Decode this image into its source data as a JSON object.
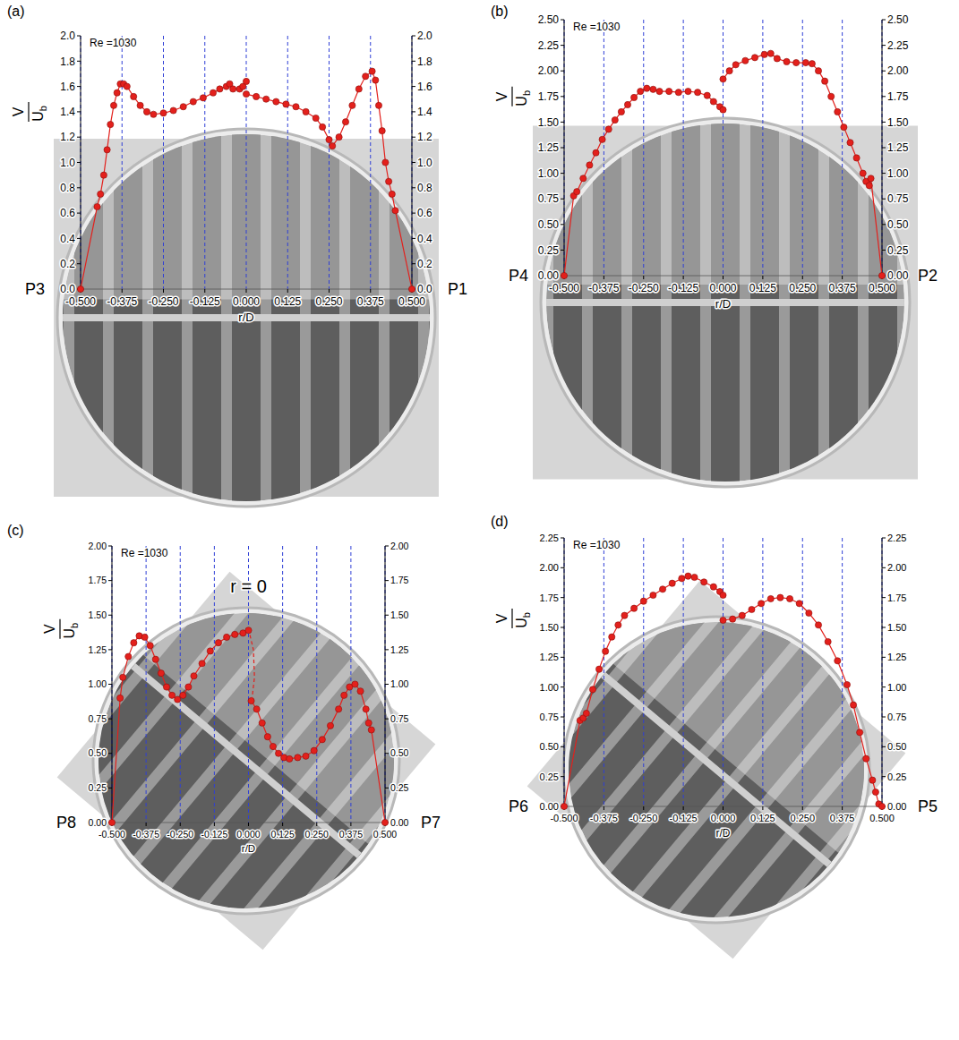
{
  "chart_data": [
    {
      "type": "line",
      "panel_label": "(a)",
      "annotations": [
        "Re =1030"
      ],
      "left_label": "P3",
      "right_label": "P1",
      "x_label": "r/D",
      "y_label": {
        "numerator": "V",
        "denominator": "U",
        "denominator_subscript": "b"
      },
      "xlim": [
        -0.5,
        0.5
      ],
      "xticks": [
        {
          "value": -0.5,
          "label": "-0.500"
        },
        -0.375,
        {
          "value": -0.25,
          "label": "-0.250"
        },
        -0.125,
        {
          "value": 0,
          "label": "0.000"
        },
        0.125,
        {
          "value": 0.25,
          "label": "0.250"
        },
        0.375,
        {
          "value": 0.5,
          "label": "0.500"
        }
      ],
      "ylim": [
        0,
        2
      ],
      "yticks": [
        {
          "value": 0,
          "label": "0.0"
        },
        0.2,
        0.4,
        0.6,
        0.8,
        {
          "value": 1,
          "label": "1.0"
        },
        1.2,
        1.4,
        1.6,
        1.8,
        {
          "value": 2,
          "label": "2.0"
        }
      ],
      "y2lim": [
        0,
        2
      ],
      "y2ticks": [
        {
          "value": 0,
          "label": "0.0"
        },
        0.2,
        0.4,
        0.6,
        0.8,
        {
          "value": 1,
          "label": "1.0"
        },
        1.2,
        1.4,
        1.6,
        1.8,
        {
          "value": 2,
          "label": "2.0"
        }
      ],
      "grid": true,
      "series": [
        {
          "color": "#e3201c",
          "marker": "circle",
          "line_style": "solid",
          "x": [
            -0.5,
            -0.45,
            -0.44,
            -0.43,
            -0.42,
            -0.41,
            -0.4,
            -0.39,
            -0.38,
            -0.37,
            -0.36,
            -0.34,
            -0.32,
            -0.3,
            -0.28,
            -0.25,
            -0.22,
            -0.19,
            -0.16,
            -0.13,
            -0.1,
            -0.08,
            -0.06,
            -0.05,
            -0.04,
            -0.02,
            -0.01,
            0
          ],
          "values": [
            0,
            0.65,
            0.75,
            0.9,
            1.1,
            1.3,
            1.45,
            1.55,
            1.62,
            1.62,
            1.6,
            1.52,
            1.45,
            1.4,
            1.38,
            1.39,
            1.41,
            1.44,
            1.48,
            1.51,
            1.55,
            1.58,
            1.6,
            1.62,
            1.58,
            1.58,
            1.6,
            1.64
          ]
        },
        {
          "color": "#e3201c",
          "marker": "circle",
          "line_style": "solid",
          "x": [
            0,
            0.03,
            0.06,
            0.09,
            0.12,
            0.15,
            0.18,
            0.21,
            0.23,
            0.25,
            0.26,
            0.28,
            0.3,
            0.32,
            0.34,
            0.36,
            0.38,
            0.39,
            0.4,
            0.41,
            0.42,
            0.43,
            0.44,
            0.45,
            0.5
          ],
          "values": [
            1.54,
            1.52,
            1.5,
            1.48,
            1.46,
            1.44,
            1.4,
            1.35,
            1.28,
            1.18,
            1.13,
            1.2,
            1.32,
            1.45,
            1.58,
            1.68,
            1.72,
            1.65,
            1.45,
            1.25,
            1.0,
            0.85,
            0.75,
            0.62,
            0
          ]
        }
      ]
    },
    {
      "type": "line",
      "panel_label": "(b)",
      "annotations": [
        "Re =1030"
      ],
      "left_label": "P4",
      "right_label": "P2",
      "x_label": "r/D",
      "y_label": {
        "numerator": "V",
        "denominator": "U",
        "denominator_subscript": "b"
      },
      "xlim": [
        -0.5,
        0.5
      ],
      "xticks": [
        {
          "value": -0.5,
          "label": "-0.500"
        },
        -0.375,
        {
          "value": -0.25,
          "label": "-0.250"
        },
        -0.125,
        {
          "value": 0,
          "label": "0.000"
        },
        0.125,
        {
          "value": 0.25,
          "label": "0.250"
        },
        0.375,
        {
          "value": 0.5,
          "label": "0.500"
        }
      ],
      "ylim": [
        0,
        2.5
      ],
      "yticks": [
        {
          "value": 0,
          "label": "0.00"
        },
        0.25,
        {
          "value": 0.5,
          "label": "0.50"
        },
        0.75,
        {
          "value": 1,
          "label": "1.00"
        },
        1.25,
        {
          "value": 1.5,
          "label": "1.50"
        },
        1.75,
        {
          "value": 2,
          "label": "2.00"
        },
        2.25,
        {
          "value": 2.5,
          "label": "2.50"
        }
      ],
      "y2lim": [
        0,
        2.5
      ],
      "y2ticks": [
        {
          "value": 0,
          "label": "0.00"
        },
        0.25,
        {
          "value": 0.5,
          "label": "0.50"
        },
        0.75,
        {
          "value": 1,
          "label": "1.00"
        },
        1.25,
        {
          "value": 1.5,
          "label": "1.50"
        },
        1.75,
        {
          "value": 2,
          "label": "2.00"
        },
        2.25,
        {
          "value": 2.5,
          "label": "2.50"
        }
      ],
      "grid": true,
      "series": [
        {
          "color": "#e3201c",
          "marker": "circle",
          "line_style": "solid",
          "x": [
            -0.5,
            -0.47,
            -0.46,
            -0.44,
            -0.42,
            -0.4,
            -0.38,
            -0.36,
            -0.34,
            -0.32,
            -0.3,
            -0.28,
            -0.26,
            -0.24,
            -0.22,
            -0.2,
            -0.17,
            -0.14,
            -0.11,
            -0.08,
            -0.05,
            -0.03,
            -0.01,
            0
          ],
          "values": [
            0,
            0.78,
            0.82,
            0.95,
            1.08,
            1.2,
            1.33,
            1.43,
            1.52,
            1.6,
            1.67,
            1.74,
            1.8,
            1.83,
            1.82,
            1.8,
            1.8,
            1.79,
            1.8,
            1.79,
            1.76,
            1.7,
            1.65,
            1.62
          ]
        },
        {
          "color": "#e3201c",
          "marker": "circle",
          "line_style": "solid",
          "x": [
            0,
            0.02,
            0.04,
            0.07,
            0.1,
            0.13,
            0.15,
            0.17,
            0.2,
            0.23,
            0.26,
            0.28,
            0.3,
            0.32,
            0.34,
            0.36,
            0.38,
            0.4,
            0.42,
            0.44,
            0.45,
            0.46,
            0.465,
            0.5
          ],
          "values": [
            1.92,
            2.0,
            2.06,
            2.1,
            2.13,
            2.16,
            2.17,
            2.12,
            2.09,
            2.08,
            2.08,
            2.07,
            2.0,
            1.9,
            1.75,
            1.6,
            1.45,
            1.3,
            1.15,
            1.0,
            0.92,
            0.88,
            0.95,
            0
          ]
        }
      ]
    },
    {
      "type": "line",
      "panel_label": "(c)",
      "annotations": [
        "Re =1030",
        "r = 0"
      ],
      "left_label": "P8",
      "right_label": "P7",
      "x_label": "r/D",
      "y_label": {
        "numerator": "V",
        "denominator": "U",
        "denominator_subscript": "b"
      },
      "xlim": [
        -0.5,
        0.5
      ],
      "xticks": [
        {
          "value": -0.5,
          "label": "-0.500"
        },
        -0.375,
        {
          "value": -0.25,
          "label": "-0.250"
        },
        -0.125,
        {
          "value": 0,
          "label": "0.000"
        },
        0.125,
        {
          "value": 0.25,
          "label": "0.250"
        },
        0.375,
        {
          "value": 0.5,
          "label": "0.500"
        }
      ],
      "ylim": [
        0,
        2
      ],
      "yticks": [
        {
          "value": 0,
          "label": "0.00"
        },
        0.25,
        {
          "value": 0.5,
          "label": "0.50"
        },
        0.75,
        {
          "value": 1,
          "label": "1.00"
        },
        1.25,
        {
          "value": 1.5,
          "label": "1.50"
        },
        1.75,
        {
          "value": 2,
          "label": "2.00"
        }
      ],
      "y2lim": [
        0,
        2
      ],
      "y2ticks": [
        {
          "value": 0,
          "label": "0.00"
        },
        0.25,
        {
          "value": 0.5,
          "label": "0.50"
        },
        0.75,
        {
          "value": 1,
          "label": "1.00"
        },
        1.25,
        {
          "value": 1.5,
          "label": "1.50"
        },
        1.75,
        {
          "value": 2,
          "label": "2.00"
        }
      ],
      "grid": true,
      "series": [
        {
          "color": "#e3201c",
          "marker": "circle",
          "line_style": "solid",
          "x": [
            -0.5,
            -0.47,
            -0.46,
            -0.44,
            -0.42,
            -0.4,
            -0.38,
            -0.36,
            -0.34,
            -0.32,
            -0.3,
            -0.28,
            -0.26,
            -0.24,
            -0.22,
            -0.2,
            -0.17,
            -0.14,
            -0.11,
            -0.08,
            -0.05,
            -0.02,
            0
          ],
          "values": [
            0,
            0.9,
            1.05,
            1.2,
            1.3,
            1.35,
            1.34,
            1.28,
            1.18,
            1.08,
            0.98,
            0.92,
            0.89,
            0.92,
            0.98,
            1.06,
            1.15,
            1.24,
            1.3,
            1.34,
            1.36,
            1.37,
            1.39
          ]
        },
        {
          "color": "#e3201c",
          "marker": "circle",
          "line_style": "solid",
          "x": [
            0.01,
            0.03,
            0.05,
            0.07,
            0.09,
            0.11,
            0.13,
            0.15,
            0.18,
            0.21,
            0.24,
            0.27,
            0.3,
            0.33,
            0.35,
            0.37,
            0.39,
            0.41,
            0.43,
            0.44,
            0.45,
            0.5
          ],
          "values": [
            0.88,
            0.82,
            0.72,
            0.62,
            0.55,
            0.5,
            0.47,
            0.46,
            0.47,
            0.48,
            0.52,
            0.6,
            0.7,
            0.82,
            0.92,
            0.98,
            1.0,
            0.95,
            0.82,
            0.72,
            0.67,
            0
          ]
        },
        {
          "color": "#e3201c",
          "marker": "none",
          "line_style": "dashed",
          "x": [
            0,
            0.018,
            0.022,
            0.012
          ],
          "values": [
            1.4,
            1.25,
            1.05,
            0.88
          ]
        }
      ]
    },
    {
      "type": "line",
      "panel_label": "(d)",
      "annotations": [
        "Re =1030"
      ],
      "left_label": "P6",
      "right_label": "P5",
      "x_label": "r/D",
      "y_label": {
        "numerator": "V",
        "denominator": "U",
        "denominator_subscript": "b"
      },
      "xlim": [
        -0.5,
        0.5
      ],
      "xticks": [
        {
          "value": -0.5,
          "label": "-0.500"
        },
        -0.375,
        {
          "value": -0.25,
          "label": "-0.250"
        },
        -0.125,
        {
          "value": 0,
          "label": "0.000"
        },
        0.125,
        {
          "value": 0.25,
          "label": "0.250"
        },
        0.375,
        {
          "value": 0.5,
          "label": "0.500"
        }
      ],
      "ylim": [
        0,
        2.25
      ],
      "yticks": [
        {
          "value": 0,
          "label": "0.00"
        },
        0.25,
        {
          "value": 0.5,
          "label": "0.50"
        },
        0.75,
        {
          "value": 1,
          "label": "1.00"
        },
        1.25,
        {
          "value": 1.5,
          "label": "1.50"
        },
        1.75,
        {
          "value": 2,
          "label": "2.00"
        },
        2.25
      ],
      "y2lim": [
        0,
        2.25
      ],
      "y2ticks": [
        {
          "value": 0,
          "label": "0.00"
        },
        0.25,
        {
          "value": 0.5,
          "label": "0.50"
        },
        0.75,
        {
          "value": 1,
          "label": "1.00"
        },
        1.25,
        {
          "value": 1.5,
          "label": "1.50"
        },
        1.75,
        {
          "value": 2,
          "label": "2.00"
        },
        2.25
      ],
      "grid": true,
      "series": [
        {
          "color": "#e3201c",
          "marker": "circle",
          "line_style": "solid",
          "x": [
            -0.5,
            -0.45,
            -0.44,
            -0.43,
            -0.41,
            -0.39,
            -0.37,
            -0.35,
            -0.33,
            -0.31,
            -0.28,
            -0.25,
            -0.22,
            -0.19,
            -0.16,
            -0.13,
            -0.11,
            -0.09,
            -0.06,
            -0.03,
            -0.01,
            0
          ],
          "values": [
            0,
            0.72,
            0.74,
            0.78,
            0.98,
            1.15,
            1.3,
            1.42,
            1.52,
            1.6,
            1.66,
            1.72,
            1.77,
            1.82,
            1.87,
            1.91,
            1.93,
            1.92,
            1.88,
            1.84,
            1.8,
            1.77
          ]
        },
        {
          "color": "#e3201c",
          "marker": "circle",
          "line_style": "solid",
          "x": [
            0,
            0.03,
            0.06,
            0.09,
            0.12,
            0.15,
            0.18,
            0.21,
            0.24,
            0.27,
            0.3,
            0.33,
            0.36,
            0.39,
            0.41,
            0.43,
            0.45,
            0.47,
            0.48,
            0.49,
            0.5
          ],
          "values": [
            1.56,
            1.57,
            1.6,
            1.65,
            1.7,
            1.74,
            1.75,
            1.74,
            1.7,
            1.62,
            1.52,
            1.38,
            1.22,
            1.02,
            0.85,
            0.62,
            0.4,
            0.22,
            0.12,
            0.02,
            0
          ]
        }
      ]
    }
  ]
}
